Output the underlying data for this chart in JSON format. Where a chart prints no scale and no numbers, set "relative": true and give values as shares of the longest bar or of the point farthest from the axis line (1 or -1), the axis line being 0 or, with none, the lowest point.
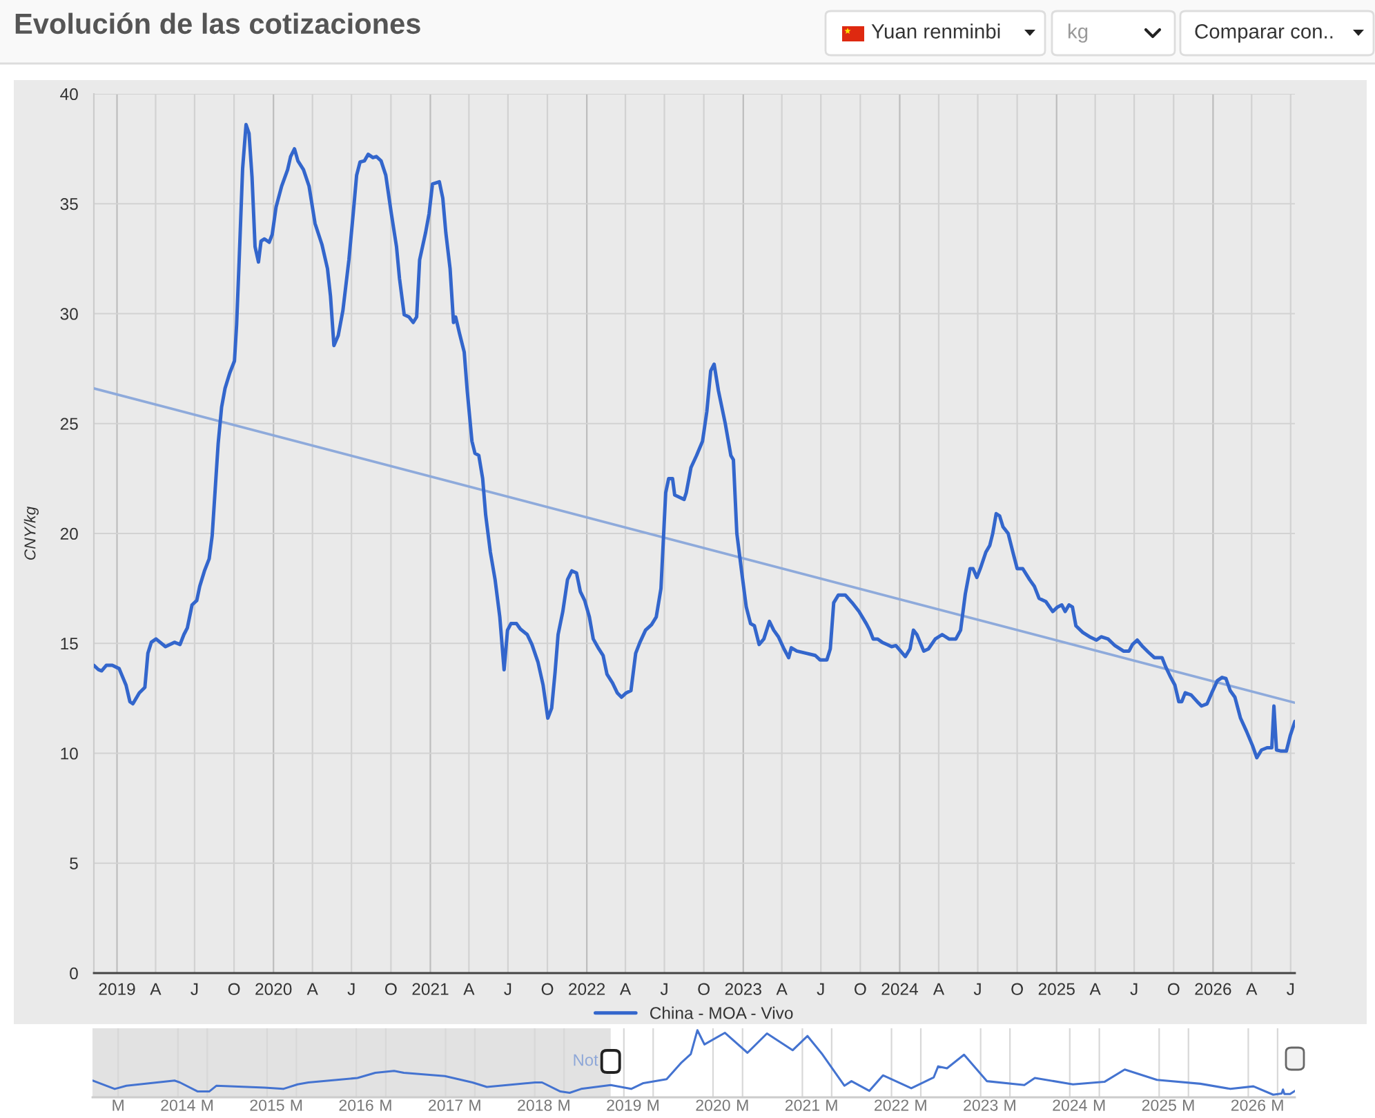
{
  "chart_data": [
    {
      "type": "line",
      "title": "Evolución de las cotizaciones",
      "ylabel": "CNY/kg",
      "annotations": [
        "Yuan renminbi",
        "kg",
        "Comparar con.."
      ],
      "series": [
        {
          "name": "China - MOA - Vivo",
          "color": "#3366cc",
          "x": [
            "2018-11-08",
            "2018-11-19",
            "2018-11-26",
            "2018-12-07",
            "2018-12-21",
            "2019-01-06",
            "2019-01-22",
            "2019-01-31",
            "2019-02-07",
            "2019-02-22",
            "2019-03-07",
            "2019-03-14",
            "2019-03-22",
            "2019-04-02",
            "2019-04-24",
            "2019-05-15",
            "2019-05-28",
            "2019-06-06",
            "2019-06-14",
            "2019-06-25",
            "2019-07-06",
            "2019-07-13",
            "2019-07-24",
            "2019-08-04",
            "2019-08-11",
            "2019-08-18",
            "2019-08-25",
            "2019-09-02",
            "2019-09-10",
            "2019-09-21",
            "2019-10-02",
            "2019-10-07",
            "2019-10-13",
            "2019-10-21",
            "2019-10-29",
            "2019-11-05",
            "2019-11-12",
            "2019-11-19",
            "2019-11-27",
            "2019-12-03",
            "2019-12-11",
            "2019-12-22",
            "2019-12-29",
            "2020-01-07",
            "2020-01-20",
            "2020-02-03",
            "2020-02-10",
            "2020-02-19",
            "2020-02-27",
            "2020-03-11",
            "2020-03-24",
            "2020-04-07",
            "2020-04-23",
            "2020-05-06",
            "2020-05-13",
            "2020-05-21",
            "2020-05-31",
            "2020-06-11",
            "2020-06-25",
            "2020-07-05",
            "2020-07-13",
            "2020-07-21",
            "2020-07-31",
            "2020-08-09",
            "2020-08-20",
            "2020-08-28",
            "2020-09-08",
            "2020-09-19",
            "2020-10-02",
            "2020-10-14",
            "2020-10-21",
            "2020-11-01",
            "2020-11-12",
            "2020-11-22",
            "2020-11-30",
            "2020-12-07",
            "2020-12-21",
            "2020-12-29",
            "2021-01-06",
            "2021-01-22",
            "2021-01-30",
            "2021-02-06",
            "2021-02-16",
            "2021-02-24",
            "2021-03-01",
            "2021-03-10",
            "2021-03-21",
            "2021-03-28",
            "2021-04-08",
            "2021-04-15",
            "2021-04-24",
            "2021-05-03",
            "2021-05-10",
            "2021-05-21",
            "2021-06-01",
            "2021-06-12",
            "2021-06-22",
            "2021-06-30",
            "2021-07-08",
            "2021-07-21",
            "2021-07-30",
            "2021-08-15",
            "2021-08-26",
            "2021-09-09",
            "2021-09-21",
            "2021-10-02",
            "2021-10-11",
            "2021-10-19",
            "2021-10-26",
            "2021-11-06",
            "2021-11-17",
            "2021-11-27",
            "2021-12-08",
            "2021-12-17",
            "2021-12-27",
            "2022-01-07",
            "2022-01-16",
            "2022-01-29",
            "2022-02-08",
            "2022-02-17",
            "2022-03-02",
            "2022-03-13",
            "2022-03-23",
            "2022-04-03",
            "2022-04-14",
            "2022-04-25",
            "2022-05-05",
            "2022-05-18",
            "2022-06-01",
            "2022-06-12",
            "2022-06-23",
            "2022-07-04",
            "2022-07-11",
            "2022-07-20",
            "2022-07-25",
            "2022-08-05",
            "2022-08-16",
            "2022-08-21",
            "2022-09-01",
            "2022-09-14",
            "2022-09-28",
            "2022-10-08",
            "2022-10-17",
            "2022-10-25",
            "2022-11-04",
            "2022-11-20",
            "2022-12-03",
            "2022-12-09",
            "2022-12-17",
            "2022-12-28",
            "2023-01-08",
            "2023-01-18",
            "2023-01-27",
            "2023-02-07",
            "2023-02-18",
            "2023-03-03",
            "2023-03-13",
            "2023-03-24",
            "2023-04-06",
            "2023-04-17",
            "2023-04-23",
            "2023-05-06",
            "2023-05-28",
            "2023-06-18",
            "2023-06-29",
            "2023-07-15",
            "2023-07-23",
            "2023-07-31",
            "2023-08-11",
            "2023-08-27",
            "2023-09-12",
            "2023-09-28",
            "2023-10-15",
            "2023-10-23",
            "2023-10-31",
            "2023-11-10",
            "2023-11-21",
            "2023-12-02",
            "2023-12-13",
            "2023-12-23",
            "2024-01-03",
            "2024-01-14",
            "2024-01-25",
            "2024-02-02",
            "2024-02-10",
            "2024-02-26",
            "2024-03-08",
            "2024-03-24",
            "2024-04-09",
            "2024-04-25",
            "2024-05-11",
            "2024-05-22",
            "2024-06-02",
            "2024-06-13",
            "2024-06-20",
            "2024-06-29",
            "2024-07-07",
            "2024-07-20",
            "2024-07-29",
            "2024-08-05",
            "2024-08-13",
            "2024-08-21",
            "2024-08-29",
            "2024-09-10",
            "2024-09-21",
            "2024-10-01",
            "2024-10-14",
            "2024-10-30",
            "2024-11-10",
            "2024-11-21",
            "2024-12-07",
            "2024-12-23",
            "2025-01-03",
            "2025-01-13",
            "2025-01-21",
            "2025-01-30",
            "2025-02-07",
            "2025-02-15",
            "2025-03-03",
            "2025-03-19",
            "2025-04-04",
            "2025-04-15",
            "2025-05-01",
            "2025-05-17",
            "2025-06-06",
            "2025-06-19",
            "2025-06-27",
            "2025-07-08",
            "2025-07-21",
            "2025-08-03",
            "2025-08-17",
            "2025-09-04",
            "2025-09-12",
            "2025-09-23",
            "2025-10-04",
            "2025-10-13",
            "2025-10-20",
            "2025-10-28",
            "2025-11-11",
            "2025-11-25",
            "2025-12-05",
            "2025-12-18",
            "2025-12-29",
            "2026-01-11",
            "2026-01-22",
            "2026-01-31",
            "2026-02-10",
            "2026-02-21",
            "2026-03-06",
            "2026-03-20",
            "2026-04-03",
            "2026-04-13",
            "2026-04-24",
            "2026-05-07",
            "2026-05-18",
            "2026-05-23",
            "2026-05-29",
            "2026-06-09",
            "2026-06-21",
            "2026-06-30",
            "2026-07-11"
          ],
          "values": [
            14,
            13.8,
            13.75,
            14,
            14,
            13.85,
            13.1,
            12.35,
            12.25,
            12.75,
            13,
            14.55,
            15.05,
            15.2,
            14.85,
            15.05,
            14.95,
            15.4,
            15.7,
            16.75,
            16.95,
            17.6,
            18.3,
            18.85,
            19.9,
            22,
            24.1,
            25.75,
            26.6,
            27.3,
            27.85,
            29.5,
            32.45,
            36.6,
            38.6,
            38.2,
            36.2,
            33.05,
            32.35,
            33.3,
            33.4,
            33.25,
            33.6,
            34.85,
            35.8,
            36.55,
            37.15,
            37.5,
            36.95,
            36.55,
            35.8,
            34.1,
            33.15,
            32.05,
            30.8,
            28.55,
            29,
            30.15,
            32.45,
            34.55,
            36.3,
            36.9,
            36.95,
            37.25,
            37.1,
            37.15,
            36.95,
            36.3,
            34.55,
            33.05,
            31.6,
            29.95,
            29.85,
            29.6,
            29.85,
            32.45,
            33.7,
            34.55,
            35.9,
            36,
            35.25,
            33.7,
            32.05,
            29.6,
            29.85,
            29.1,
            28.25,
            26.5,
            24.2,
            23.65,
            23.55,
            22.5,
            20.85,
            19.15,
            17.9,
            16.2,
            13.8,
            15.6,
            15.9,
            15.9,
            15.65,
            15.4,
            14.95,
            14.15,
            13.1,
            11.6,
            12.05,
            13.7,
            15.4,
            16.45,
            17.9,
            18.3,
            18.2,
            17.35,
            16.95,
            16.2,
            15.2,
            14.75,
            14.45,
            13.6,
            13.2,
            12.75,
            12.55,
            12.75,
            12.85,
            14.55,
            15.05,
            15.6,
            15.85,
            16.2,
            17.5,
            21.85,
            22.5,
            22.5,
            21.75,
            21.65,
            21.55,
            21.85,
            23,
            23.55,
            24.2,
            25.55,
            27.4,
            27.7,
            26.5,
            25,
            23.55,
            23.35,
            20,
            18.3,
            16.65,
            15.9,
            15.8,
            14.95,
            15.2,
            16,
            15.6,
            15.3,
            14.75,
            14.35,
            14.8,
            14.65,
            14.55,
            14.45,
            14.25,
            14.25,
            14.75,
            16.85,
            17.2,
            17.2,
            16.85,
            16.45,
            15.9,
            15.6,
            15.2,
            15.2,
            15.05,
            14.95,
            14.85,
            14.9,
            14.65,
            14.4,
            14.75,
            15.6,
            15.4,
            14.65,
            14.75,
            15.2,
            15.4,
            15.2,
            15.2,
            15.6,
            17.25,
            18.4,
            18.4,
            18,
            18.4,
            19.15,
            19.45,
            20,
            20.9,
            20.8,
            20.3,
            20,
            19.15,
            18.4,
            18.4,
            17.9,
            17.6,
            17.05,
            16.9,
            16.45,
            16.65,
            16.75,
            16.45,
            16.75,
            16.65,
            15.8,
            15.5,
            15.3,
            15.15,
            15.3,
            15.2,
            14.9,
            14.65,
            14.65,
            14.95,
            15.15,
            14.85,
            14.6,
            14.35,
            14.35,
            13.95,
            13.5,
            13.1,
            12.35,
            12.35,
            12.75,
            12.65,
            12.35,
            12.15,
            12.25,
            12.75,
            13.3,
            13.45,
            13.4,
            12.85,
            12.55,
            11.6,
            11,
            10.35,
            9.8,
            10.15,
            10.25,
            10.25,
            12.15,
            10.15,
            10.1,
            10.1,
            10.8,
            11.45
          ]
        },
        {
          "type": "line",
          "color": "#8eaadb",
          "x": [
            "2018-11-08",
            "2026-07-11"
          ],
          "values": [
            26.6,
            12.3
          ]
        }
      ],
      "xlim": [
        "2018-11-08",
        "2026-07-11"
      ],
      "xticks": [
        {
          "value": "2019-01-01",
          "label": "2019"
        },
        {
          "value": "2019-04-01",
          "label": "A"
        },
        {
          "value": "2019-07-01",
          "label": "J"
        },
        {
          "value": "2019-10-01",
          "label": "O"
        },
        {
          "value": "2020-01-01",
          "label": "2020"
        },
        {
          "value": "2020-04-01",
          "label": "A"
        },
        {
          "value": "2020-07-01",
          "label": "J"
        },
        {
          "value": "2020-10-01",
          "label": "O"
        },
        {
          "value": "2021-01-01",
          "label": "2021"
        },
        {
          "value": "2021-04-01",
          "label": "A"
        },
        {
          "value": "2021-07-01",
          "label": "J"
        },
        {
          "value": "2021-10-01",
          "label": "O"
        },
        {
          "value": "2022-01-01",
          "label": "2022"
        },
        {
          "value": "2022-04-01",
          "label": "A"
        },
        {
          "value": "2022-07-01",
          "label": "J"
        },
        {
          "value": "2022-10-01",
          "label": "O"
        },
        {
          "value": "2023-01-01",
          "label": "2023"
        },
        {
          "value": "2023-04-01",
          "label": "A"
        },
        {
          "value": "2023-07-01",
          "label": "J"
        },
        {
          "value": "2023-10-01",
          "label": "O"
        },
        {
          "value": "2024-01-01",
          "label": "2024"
        },
        {
          "value": "2024-04-01",
          "label": "A"
        },
        {
          "value": "2024-07-01",
          "label": "J"
        },
        {
          "value": "2024-10-01",
          "label": "O"
        },
        {
          "value": "2025-01-01",
          "label": "2025"
        },
        {
          "value": "2025-04-01",
          "label": "A"
        },
        {
          "value": "2025-07-01",
          "label": "J"
        },
        {
          "value": "2025-10-01",
          "label": "O"
        },
        {
          "value": "2026-01-01",
          "label": "2026"
        },
        {
          "value": "2026-04-01",
          "label": "A"
        },
        {
          "value": "2026-07-01",
          "label": "J"
        }
      ],
      "ylim": [
        0,
        40
      ],
      "yticks": [
        0,
        5,
        10,
        15,
        20,
        25,
        30,
        35,
        40
      ],
      "grid": true,
      "legend": "bottom"
    },
    {
      "type": "line",
      "relative": true,
      "annotations": [
        "Not"
      ],
      "series": [
        {
          "color": "#4473d0",
          "x": [
            "2013-01-16",
            "2013-04-17",
            "2013-06-04",
            "2013-12-18",
            "2014-01-09",
            "2014-03-23",
            "2014-05-09",
            "2014-06-08",
            "2014-12-22",
            "2015-03-08",
            "2015-05-06",
            "2015-06-19",
            "2016-01-06",
            "2016-03-19",
            "2016-06-04",
            "2016-07-14",
            "2016-12-29",
            "2017-04-21",
            "2017-06-19",
            "2018-01-02",
            "2018-01-31",
            "2018-04-16",
            "2018-05-24",
            "2018-07-10",
            "2018-11-08",
            "2019-01-31",
            "2019-03-22",
            "2019-06-25",
            "2019-08-25",
            "2019-10-02",
            "2019-10-29",
            "2019-11-27",
            "2020-02-19",
            "2020-05-21",
            "2020-08-09",
            "2020-11-22",
            "2021-01-22",
            "2021-03-21",
            "2021-06-22",
            "2021-07-21",
            "2021-10-02",
            "2021-11-27",
            "2022-03-23",
            "2022-06-23",
            "2022-07-11",
            "2022-08-16",
            "2022-10-25",
            "2023-01-27",
            "2023-06-29",
            "2023-08-11",
            "2024-01-14",
            "2024-05-22",
            "2024-08-13",
            "2024-12-23",
            "2025-06-19",
            "2025-10-20",
            "2026-01-22",
            "2026-04-13",
            "2026-05-18",
            "2026-05-23",
            "2026-05-29",
            "2026-06-21",
            "2026-07-11"
          ],
          "values": [
            0.22,
            0.09,
            0.14,
            0.22,
            0.19,
            0.05,
            0.05,
            0.14,
            0.11,
            0.09,
            0.16,
            0.19,
            0.26,
            0.34,
            0.37,
            0.34,
            0.29,
            0.19,
            0.12,
            0.19,
            0.19,
            0.05,
            0.03,
            0.09,
            0.15,
            0.09,
            0.18,
            0.24,
            0.5,
            0.63,
            1,
            0.78,
            0.96,
            0.65,
            0.95,
            0.69,
            0.91,
            0.64,
            0.14,
            0.21,
            0.06,
            0.3,
            0.1,
            0.27,
            0.44,
            0.41,
            0.62,
            0.21,
            0.15,
            0.26,
            0.16,
            0.2,
            0.39,
            0.23,
            0.17,
            0.09,
            0.13,
            0,
            0.02,
            0.08,
            0.01,
            0.01,
            0.06
          ]
        }
      ],
      "xlim": [
        "2013-01-16",
        "2026-07-11"
      ],
      "xticks": [
        {
          "value": "2013-05-01",
          "label": "M"
        },
        {
          "value": "2014-01-01",
          "label": "2014"
        },
        {
          "value": "2014-05-01",
          "label": "M"
        },
        {
          "value": "2015-01-01",
          "label": "2015"
        },
        {
          "value": "2015-05-01",
          "label": "M"
        },
        {
          "value": "2016-01-01",
          "label": "2016"
        },
        {
          "value": "2016-05-01",
          "label": "M"
        },
        {
          "value": "2017-01-01",
          "label": "2017"
        },
        {
          "value": "2017-05-01",
          "label": "M"
        },
        {
          "value": "2018-01-01",
          "label": "2018"
        },
        {
          "value": "2018-05-01",
          "label": "M"
        },
        {
          "value": "2019-01-01",
          "label": "2019"
        },
        {
          "value": "2019-05-01",
          "label": "M"
        },
        {
          "value": "2020-01-01",
          "label": "2020"
        },
        {
          "value": "2020-05-01",
          "label": "M"
        },
        {
          "value": "2021-01-01",
          "label": "2021"
        },
        {
          "value": "2021-05-01",
          "label": "M"
        },
        {
          "value": "2022-01-01",
          "label": "2022"
        },
        {
          "value": "2022-05-01",
          "label": "M"
        },
        {
          "value": "2023-01-01",
          "label": "2023"
        },
        {
          "value": "2023-05-01",
          "label": "M"
        },
        {
          "value": "2024-01-01",
          "label": "2024"
        },
        {
          "value": "2024-05-01",
          "label": "M"
        },
        {
          "value": "2025-01-01",
          "label": "2025"
        },
        {
          "value": "2025-05-01",
          "label": "M"
        },
        {
          "value": "2026-01-01",
          "label": "2026"
        },
        {
          "value": "2026-05-01",
          "label": "M"
        }
      ],
      "grid": "x",
      "bands": [
        {
          "axis": "x",
          "from": "2013-01-16",
          "to": "2018-11-08",
          "color": "#e2e2e2"
        }
      ]
    }
  ]
}
